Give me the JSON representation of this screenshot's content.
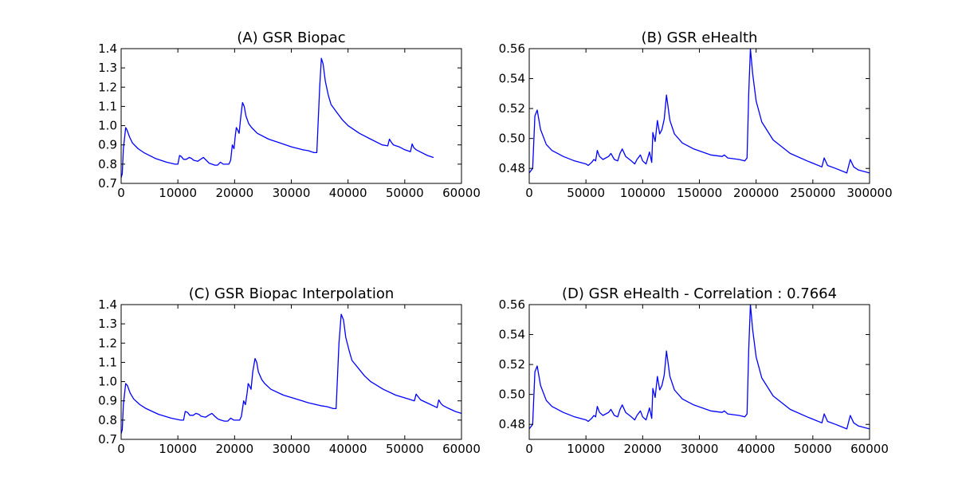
{
  "figure": {
    "background": "#ffffff"
  },
  "chart_data": [
    {
      "id": "A",
      "type": "line",
      "title": "(A) GSR Biopac",
      "xlabel": "",
      "ylabel": "",
      "xlim": [
        0,
        60000
      ],
      "ylim": [
        0.7,
        1.4
      ],
      "xticks": [
        0,
        10000,
        20000,
        30000,
        40000,
        50000,
        60000
      ],
      "yticks": [
        0.7,
        0.8,
        0.9,
        1.0,
        1.1,
        1.2,
        1.3,
        1.4
      ],
      "xtick_labels": [
        "0",
        "10000",
        "20000",
        "30000",
        "40000",
        "50000",
        "60000"
      ],
      "ytick_labels": [
        "0.7",
        "0.8",
        "0.9",
        "1.0",
        "1.1",
        "1.2",
        "1.3",
        "1.4"
      ],
      "grid": false,
      "color": "#0000ff",
      "series": [
        {
          "x": [
            0,
            200,
            400,
            800,
            1000,
            1500,
            2000,
            3000,
            4000,
            6000,
            8000,
            9500,
            10000,
            10300,
            10600,
            11000,
            11500,
            12000,
            12400,
            12800,
            13500,
            14000,
            14500,
            15000,
            15500,
            16000,
            16500,
            17000,
            17500,
            18000,
            18500,
            19000,
            19300,
            19600,
            19900,
            20100,
            20300,
            20500,
            20800,
            21100,
            21400,
            21700,
            22000,
            22500,
            23000,
            24000,
            26000,
            28000,
            30000,
            32000,
            33000,
            34000,
            34500,
            35000,
            35300,
            35600,
            36000,
            36500,
            37000,
            38000,
            39000,
            40000,
            42000,
            44000,
            46000,
            47000,
            47300,
            47600,
            48000,
            49000,
            50000,
            51000,
            51300,
            51600,
            52000,
            53000,
            54000,
            55000
          ],
          "y": [
            0.73,
            0.75,
            0.88,
            0.99,
            0.98,
            0.94,
            0.91,
            0.88,
            0.86,
            0.83,
            0.81,
            0.8,
            0.8,
            0.845,
            0.84,
            0.825,
            0.825,
            0.835,
            0.83,
            0.82,
            0.815,
            0.825,
            0.835,
            0.82,
            0.805,
            0.8,
            0.795,
            0.795,
            0.81,
            0.8,
            0.8,
            0.8,
            0.82,
            0.9,
            0.88,
            0.94,
            0.99,
            0.98,
            0.96,
            1.05,
            1.12,
            1.1,
            1.05,
            1.01,
            0.99,
            0.96,
            0.93,
            0.91,
            0.89,
            0.875,
            0.87,
            0.86,
            0.86,
            1.2,
            1.35,
            1.32,
            1.23,
            1.16,
            1.11,
            1.07,
            1.03,
            1.0,
            0.96,
            0.93,
            0.9,
            0.895,
            0.93,
            0.915,
            0.9,
            0.89,
            0.875,
            0.865,
            0.905,
            0.885,
            0.875,
            0.86,
            0.845,
            0.835
          ]
        }
      ]
    },
    {
      "id": "B",
      "type": "line",
      "title": "(B) GSR eHealth",
      "xlabel": "",
      "ylabel": "",
      "xlim": [
        0,
        300000
      ],
      "ylim": [
        0.47,
        0.56
      ],
      "xticks": [
        0,
        50000,
        100000,
        150000,
        200000,
        250000,
        300000
      ],
      "yticks": [
        0.48,
        0.5,
        0.52,
        0.54,
        0.56
      ],
      "xtick_labels": [
        "0",
        "50000",
        "100000",
        "150000",
        "200000",
        "250000",
        "300000"
      ],
      "ytick_labels": [
        "0.48",
        "0.50",
        "0.52",
        "0.54",
        "0.56"
      ],
      "grid": false,
      "color": "#0000ff",
      "series": [
        {
          "x": [
            0,
            3000,
            5000,
            7000,
            10000,
            15000,
            20000,
            30000,
            40000,
            50000,
            52000,
            55000,
            57000,
            58500,
            60000,
            62000,
            65000,
            70000,
            72000,
            75000,
            78000,
            80000,
            82000,
            85000,
            90000,
            93000,
            95000,
            98000,
            100000,
            103000,
            106000,
            108000,
            109000,
            111000,
            113000,
            115000,
            117000,
            119000,
            121000,
            124000,
            128000,
            135000,
            145000,
            160000,
            170000,
            172000,
            175000,
            185000,
            190000,
            192000,
            193500,
            195000,
            197000,
            200000,
            205000,
            215000,
            230000,
            245000,
            258000,
            260000,
            263000,
            270000,
            280000,
            283000,
            286000,
            290000,
            300000
          ],
          "y": [
            0.477,
            0.48,
            0.515,
            0.519,
            0.506,
            0.496,
            0.492,
            0.488,
            0.485,
            0.483,
            0.482,
            0.484,
            0.486,
            0.485,
            0.492,
            0.488,
            0.486,
            0.488,
            0.49,
            0.486,
            0.485,
            0.49,
            0.493,
            0.488,
            0.485,
            0.483,
            0.486,
            0.489,
            0.485,
            0.483,
            0.491,
            0.484,
            0.504,
            0.498,
            0.512,
            0.503,
            0.506,
            0.513,
            0.529,
            0.512,
            0.503,
            0.497,
            0.493,
            0.489,
            0.488,
            0.489,
            0.487,
            0.486,
            0.485,
            0.487,
            0.53,
            0.56,
            0.543,
            0.525,
            0.511,
            0.499,
            0.49,
            0.485,
            0.481,
            0.487,
            0.482,
            0.48,
            0.477,
            0.486,
            0.481,
            0.479,
            0.477
          ]
        }
      ]
    },
    {
      "id": "C",
      "type": "line",
      "title": "(C) GSR Biopac Interpolation",
      "xlabel": "",
      "ylabel": "",
      "xlim": [
        0,
        60000
      ],
      "ylim": [
        0.7,
        1.4
      ],
      "xticks": [
        0,
        10000,
        20000,
        30000,
        40000,
        50000,
        60000
      ],
      "yticks": [
        0.7,
        0.8,
        0.9,
        1.0,
        1.1,
        1.2,
        1.3,
        1.4
      ],
      "xtick_labels": [
        "0",
        "10000",
        "20000",
        "30000",
        "40000",
        "50000",
        "60000"
      ],
      "ytick_labels": [
        "0.7",
        "0.8",
        "0.9",
        "1.0",
        "1.1",
        "1.2",
        "1.3",
        "1.4"
      ],
      "grid": false,
      "color": "#0000ff",
      "series": [
        {
          "x": [
            0,
            200,
            400,
            800,
            1100,
            1600,
            2200,
            3300,
            4400,
            6600,
            8800,
            10500,
            11000,
            11300,
            11700,
            12100,
            12700,
            13200,
            13700,
            14100,
            14900,
            15400,
            16000,
            16500,
            17100,
            17600,
            18200,
            18800,
            19300,
            19900,
            20400,
            20900,
            21200,
            21600,
            21900,
            22200,
            22400,
            22600,
            22900,
            23200,
            23600,
            23900,
            24200,
            24800,
            25300,
            26400,
            28600,
            30800,
            33000,
            35200,
            36300,
            37400,
            37900,
            38400,
            38800,
            39200,
            39600,
            40200,
            40700,
            41800,
            42900,
            44000,
            46200,
            48400,
            50600,
            51700,
            52000,
            52400,
            52800,
            53900,
            55000,
            55700,
            56000,
            56400,
            56800,
            57800,
            58900,
            60000
          ],
          "y": [
            0.73,
            0.75,
            0.88,
            0.99,
            0.98,
            0.94,
            0.91,
            0.88,
            0.86,
            0.83,
            0.81,
            0.8,
            0.8,
            0.845,
            0.84,
            0.825,
            0.825,
            0.835,
            0.83,
            0.82,
            0.815,
            0.825,
            0.835,
            0.82,
            0.805,
            0.8,
            0.795,
            0.795,
            0.81,
            0.8,
            0.8,
            0.8,
            0.82,
            0.9,
            0.88,
            0.94,
            0.99,
            0.98,
            0.96,
            1.05,
            1.12,
            1.1,
            1.05,
            1.01,
            0.99,
            0.96,
            0.93,
            0.91,
            0.89,
            0.875,
            0.87,
            0.86,
            0.86,
            1.2,
            1.35,
            1.32,
            1.23,
            1.16,
            1.11,
            1.07,
            1.03,
            1.0,
            0.96,
            0.93,
            0.91,
            0.9,
            0.935,
            0.92,
            0.905,
            0.89,
            0.875,
            0.865,
            0.905,
            0.885,
            0.875,
            0.86,
            0.845,
            0.835
          ]
        }
      ]
    },
    {
      "id": "D",
      "type": "line",
      "title": "(D) GSR eHealth - Correlation : 0.7664",
      "xlabel": "",
      "ylabel": "",
      "xlim": [
        0,
        60000
      ],
      "ylim": [
        0.47,
        0.56
      ],
      "xticks": [
        0,
        10000,
        20000,
        30000,
        40000,
        50000,
        60000
      ],
      "yticks": [
        0.48,
        0.5,
        0.52,
        0.54,
        0.56
      ],
      "xtick_labels": [
        "0",
        "10000",
        "20000",
        "30000",
        "40000",
        "50000",
        "60000"
      ],
      "ytick_labels": [
        "0.48",
        "0.50",
        "0.52",
        "0.54",
        "0.56"
      ],
      "grid": false,
      "color": "#0000ff",
      "series": [
        {
          "x": [
            0,
            600,
            1000,
            1400,
            2000,
            3000,
            4000,
            6000,
            8000,
            10000,
            10400,
            11000,
            11400,
            11700,
            12000,
            12400,
            13000,
            14000,
            14400,
            15000,
            15600,
            16000,
            16400,
            17000,
            18000,
            18600,
            19000,
            19600,
            20000,
            20600,
            21200,
            21600,
            21800,
            22200,
            22600,
            23000,
            23400,
            23800,
            24200,
            24800,
            25600,
            27000,
            29000,
            32000,
            34000,
            34400,
            35000,
            37000,
            38000,
            38400,
            38700,
            39000,
            39400,
            40000,
            41000,
            43000,
            46000,
            49000,
            51600,
            52000,
            52600,
            54000,
            56000,
            56600,
            57200,
            58000,
            60000
          ],
          "y": [
            0.477,
            0.48,
            0.515,
            0.519,
            0.506,
            0.496,
            0.492,
            0.488,
            0.485,
            0.483,
            0.482,
            0.484,
            0.486,
            0.485,
            0.492,
            0.488,
            0.486,
            0.488,
            0.49,
            0.486,
            0.485,
            0.49,
            0.493,
            0.488,
            0.485,
            0.483,
            0.486,
            0.489,
            0.485,
            0.483,
            0.491,
            0.484,
            0.504,
            0.498,
            0.512,
            0.503,
            0.506,
            0.513,
            0.529,
            0.512,
            0.503,
            0.497,
            0.493,
            0.489,
            0.488,
            0.489,
            0.487,
            0.486,
            0.485,
            0.487,
            0.53,
            0.56,
            0.543,
            0.525,
            0.511,
            0.499,
            0.49,
            0.485,
            0.481,
            0.487,
            0.482,
            0.48,
            0.477,
            0.486,
            0.481,
            0.479,
            0.477
          ]
        }
      ]
    }
  ]
}
